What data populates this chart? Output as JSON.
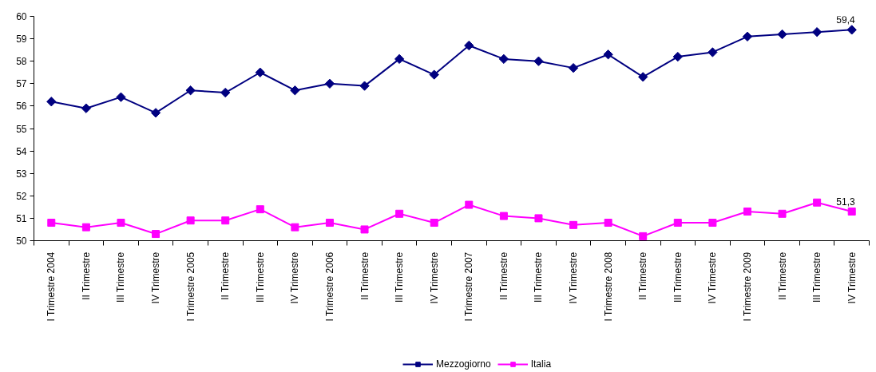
{
  "chart_data": {
    "type": "line",
    "categories": [
      "I Trimestre 2004",
      "II Trimestre",
      "III Trimestre",
      "IV Trimestre",
      "I Trimestre 2005",
      "II Trimestre",
      "III Trimestre",
      "IV Trimestre",
      "I Trimestre 2006",
      "II Trimestre",
      "III Trimestre",
      "IV Trimestre",
      "I Trimestre 2007",
      "II Trimestre",
      "III Trimestre",
      "IV Trimestre",
      "I Trimestre 2008",
      "II Trimestre",
      "III Trimestre",
      "IV Trimestre",
      "I Trimestre 2009",
      "II Trimestre",
      "III Trimestre",
      "IV Trimestre"
    ],
    "series": [
      {
        "name": "Mezzogiorno",
        "color": "#000080",
        "marker": "diamond",
        "values": [
          56.2,
          55.9,
          56.4,
          55.7,
          56.7,
          56.6,
          57.5,
          56.7,
          57.0,
          56.9,
          58.1,
          57.4,
          58.7,
          58.1,
          58.0,
          57.7,
          58.3,
          57.3,
          58.2,
          58.4,
          59.1,
          59.2,
          59.3,
          59.4
        ],
        "value_labels": [
          null,
          null,
          null,
          null,
          null,
          null,
          null,
          null,
          null,
          null,
          null,
          null,
          null,
          null,
          null,
          null,
          null,
          null,
          null,
          null,
          null,
          null,
          null,
          "59,4"
        ]
      },
      {
        "name": "Italia",
        "color": "#ff00ff",
        "marker": "square",
        "values": [
          50.8,
          50.6,
          50.8,
          50.3,
          50.9,
          50.9,
          51.4,
          50.6,
          50.8,
          50.5,
          51.2,
          50.8,
          51.6,
          51.1,
          51.0,
          50.7,
          50.8,
          50.2,
          50.8,
          50.8,
          51.3,
          51.2,
          51.7,
          51.3
        ],
        "value_labels": [
          null,
          null,
          null,
          null,
          null,
          null,
          null,
          null,
          null,
          null,
          null,
          null,
          null,
          null,
          null,
          null,
          null,
          null,
          null,
          null,
          null,
          null,
          null,
          "51,3"
        ]
      }
    ],
    "ylim": [
      50,
      60
    ],
    "yticks": [
      50,
      51,
      52,
      53,
      54,
      55,
      56,
      57,
      58,
      59,
      60
    ],
    "grid": false,
    "legend": "bottom"
  }
}
